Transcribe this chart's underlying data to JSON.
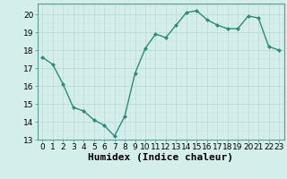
{
  "x": [
    0,
    1,
    2,
    3,
    4,
    5,
    6,
    7,
    8,
    9,
    10,
    11,
    12,
    13,
    14,
    15,
    16,
    17,
    18,
    19,
    20,
    21,
    22,
    23
  ],
  "y": [
    17.6,
    17.2,
    16.1,
    14.8,
    14.6,
    14.1,
    13.8,
    13.2,
    14.3,
    16.7,
    18.1,
    18.9,
    18.7,
    19.4,
    20.1,
    20.2,
    19.7,
    19.4,
    19.2,
    19.2,
    19.9,
    19.8,
    18.2,
    18.0
  ],
  "line_color": "#2e8b7a",
  "marker_color": "#2e8b7a",
  "bg_color": "#d4eeec",
  "grid_major_color": "#b8d8d6",
  "grid_minor_color": "#c8e4e2",
  "xlabel": "Humidex (Indice chaleur)",
  "xlim": [
    -0.5,
    23.5
  ],
  "ylim": [
    13,
    20.6
  ],
  "yticks": [
    13,
    14,
    15,
    16,
    17,
    18,
    19,
    20
  ],
  "xticks": [
    0,
    1,
    2,
    3,
    4,
    5,
    6,
    7,
    8,
    9,
    10,
    11,
    12,
    13,
    14,
    15,
    16,
    17,
    18,
    19,
    20,
    21,
    22,
    23
  ],
  "tick_label_fontsize": 6.5,
  "xlabel_fontsize": 8,
  "marker_size": 2.5,
  "line_width": 1.0,
  "spine_color": "#5a9e96"
}
